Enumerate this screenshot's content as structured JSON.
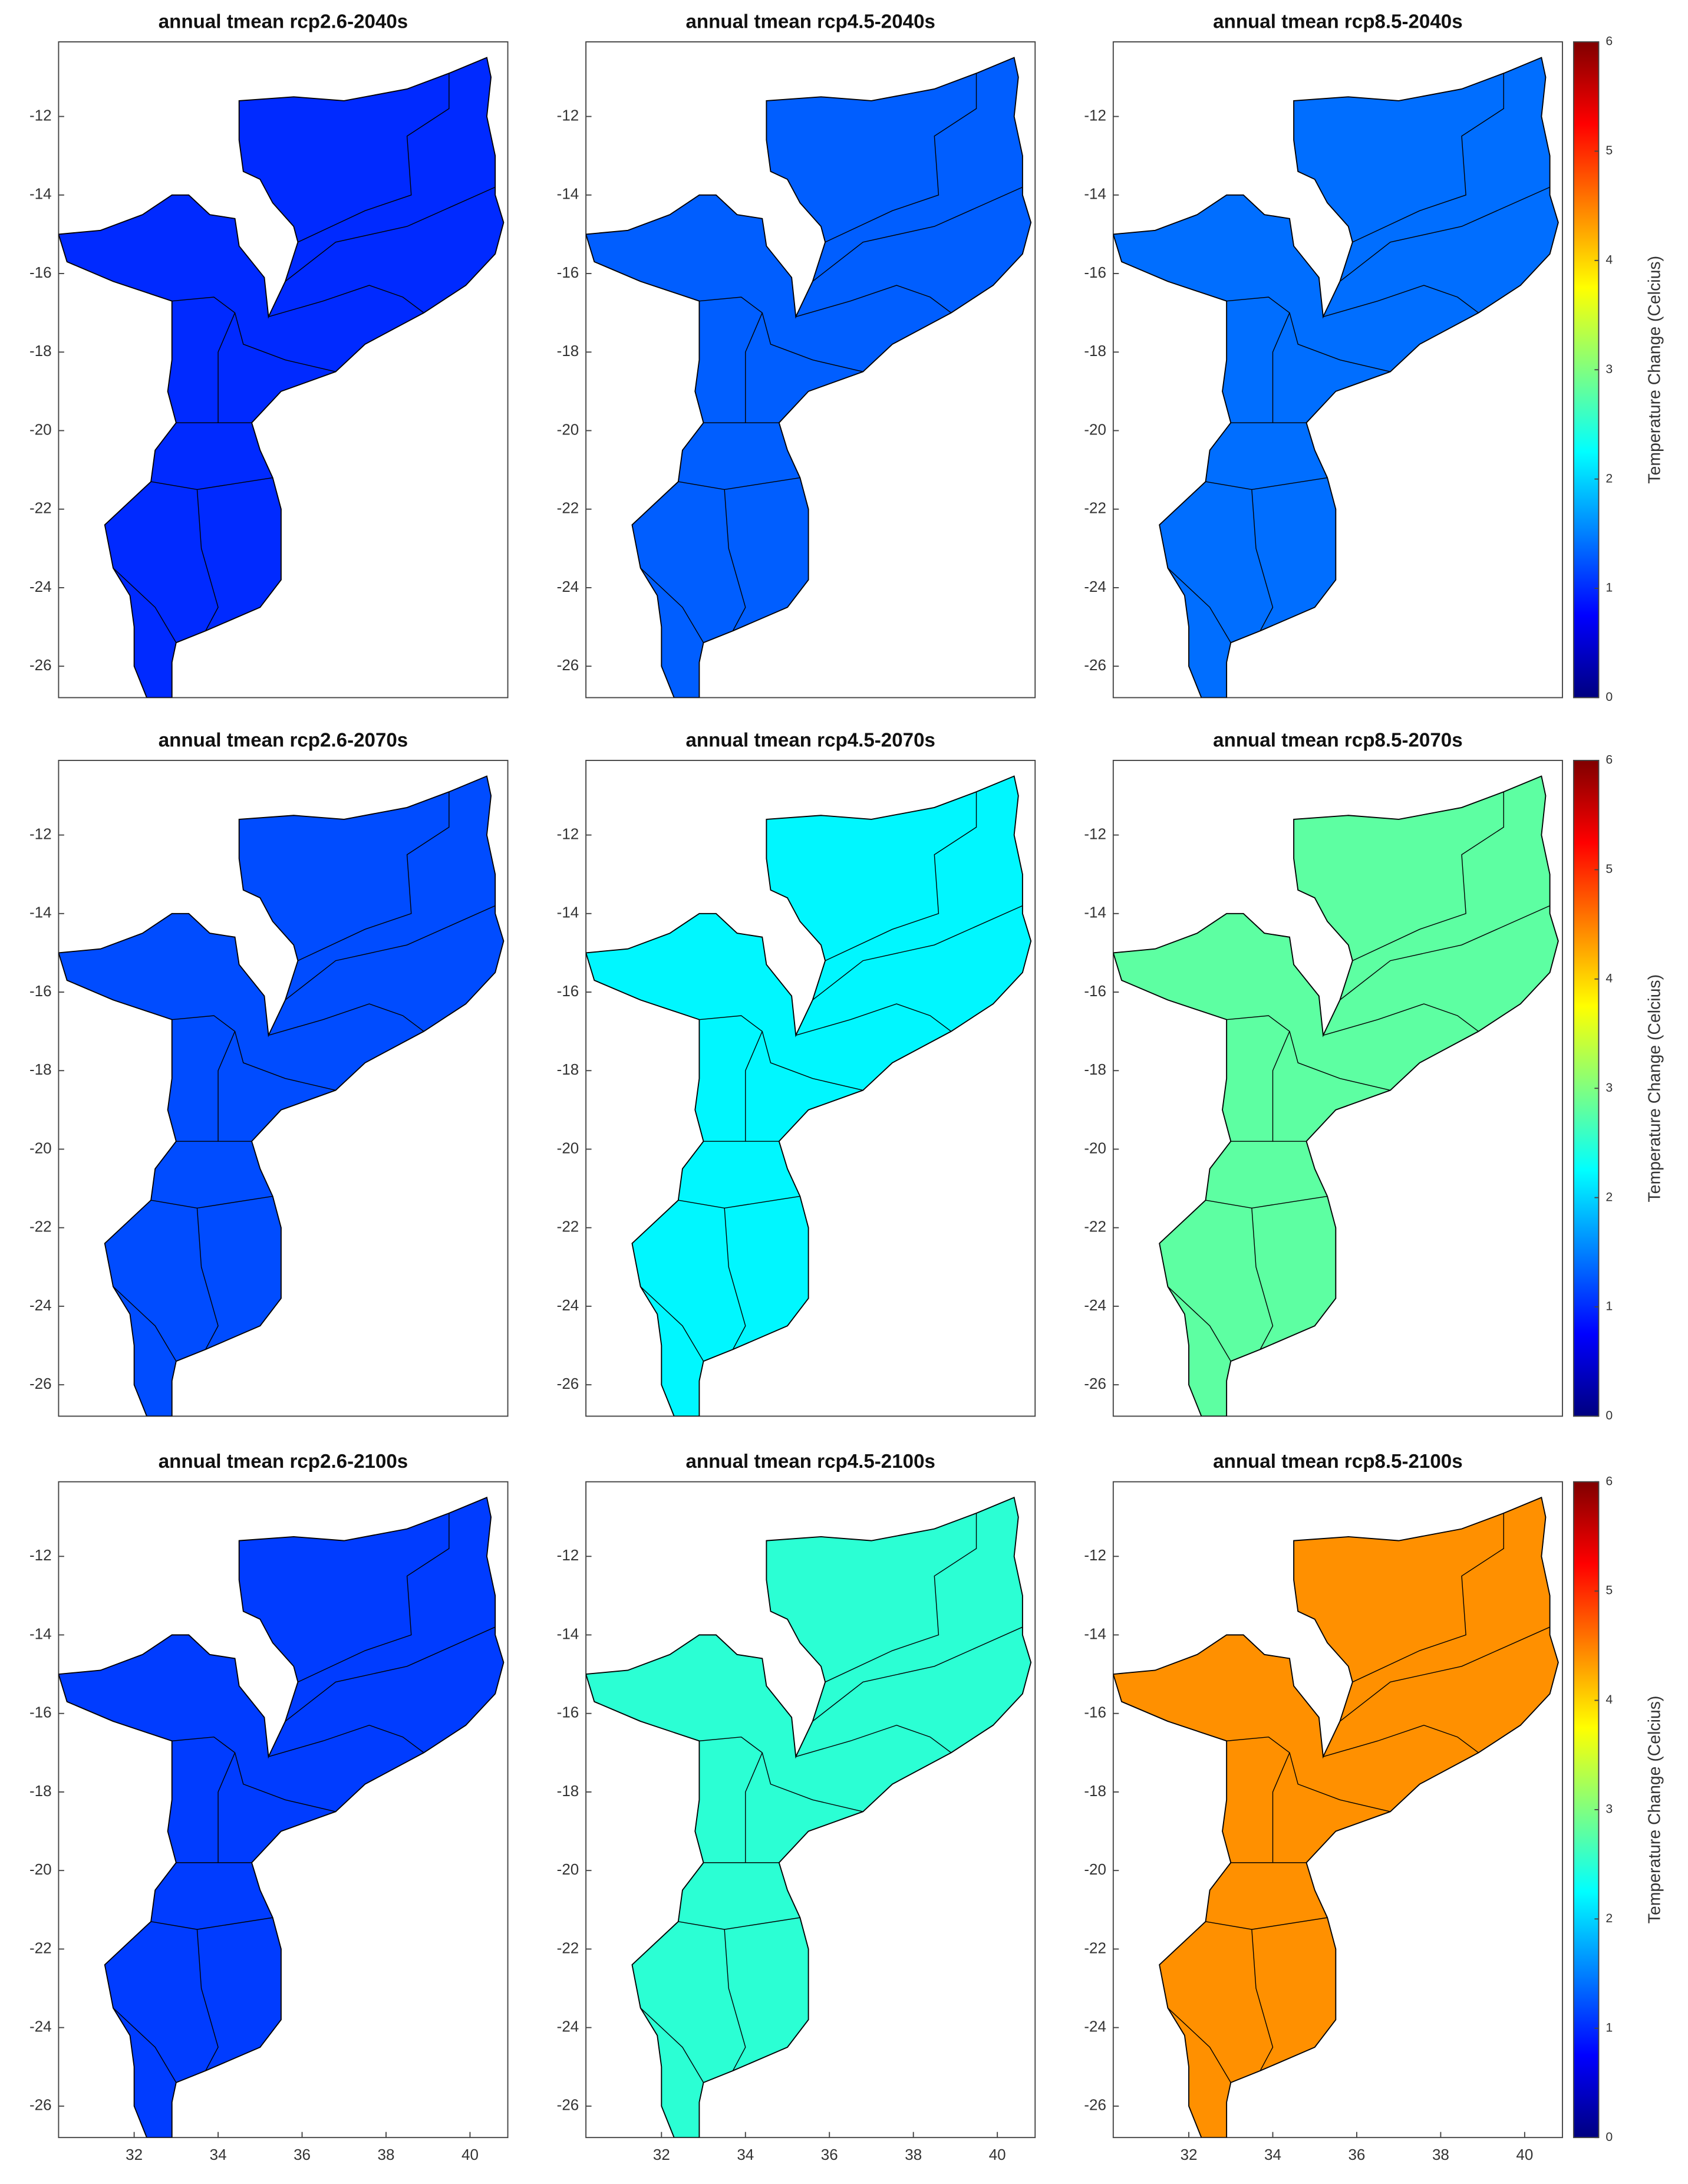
{
  "chart_data": [
    {
      "type": "map",
      "title": "annual tmean rcp2.6-2040s",
      "value": 1.0,
      "xlim": [
        30.2,
        40.9
      ],
      "ylim": [
        -26.8,
        -10.1
      ],
      "yticks": [
        -12,
        -14,
        -16,
        -18,
        -20,
        -22,
        -24,
        -26
      ]
    },
    {
      "type": "map",
      "title": "annual tmean rcp4.5-2040s",
      "value": 1.3,
      "xlim": [
        30.2,
        40.9
      ],
      "ylim": [
        -26.8,
        -10.1
      ],
      "yticks": [
        -12,
        -14,
        -16,
        -18,
        -20,
        -22,
        -24,
        -26
      ]
    },
    {
      "type": "map",
      "title": "annual tmean rcp8.5-2040s",
      "value": 1.4,
      "xlim": [
        30.2,
        40.9
      ],
      "ylim": [
        -26.8,
        -10.1
      ],
      "yticks": [
        -12,
        -14,
        -16,
        -18,
        -20,
        -22,
        -24,
        -26
      ],
      "colorbar": {
        "label": "Temperature Change (Celcius)",
        "lim": [
          0,
          6
        ],
        "ticks": [
          0,
          1,
          2,
          3,
          4,
          5,
          6
        ],
        "colormap": "jet"
      }
    },
    {
      "type": "map",
      "title": "annual tmean rcp2.6-2070s",
      "value": 1.2,
      "xlim": [
        30.2,
        40.9
      ],
      "ylim": [
        -26.8,
        -10.1
      ],
      "yticks": [
        -12,
        -14,
        -16,
        -18,
        -20,
        -22,
        -24,
        -26
      ]
    },
    {
      "type": "map",
      "title": "annual tmean rcp4.5-2070s",
      "value": 2.2,
      "xlim": [
        30.2,
        40.9
      ],
      "ylim": [
        -26.8,
        -10.1
      ],
      "yticks": [
        -12,
        -14,
        -16,
        -18,
        -20,
        -22,
        -24,
        -26
      ]
    },
    {
      "type": "map",
      "title": "annual tmean rcp8.5-2070s",
      "value": 2.8,
      "xlim": [
        30.2,
        40.9
      ],
      "ylim": [
        -26.8,
        -10.1
      ],
      "yticks": [
        -12,
        -14,
        -16,
        -18,
        -20,
        -22,
        -24,
        -26
      ],
      "colorbar": {
        "label": "Temperature Change (Celcius)",
        "lim": [
          0,
          6
        ],
        "ticks": [
          0,
          1,
          2,
          3,
          4,
          5,
          6
        ],
        "colormap": "jet"
      }
    },
    {
      "type": "map",
      "title": "annual tmean rcp2.6-2100s",
      "value": 1.1,
      "xlim": [
        30.2,
        40.9
      ],
      "ylim": [
        -26.8,
        -10.1
      ],
      "yticks": [
        -12,
        -14,
        -16,
        -18,
        -20,
        -22,
        -24,
        -26
      ],
      "xticks": [
        32,
        34,
        36,
        38,
        40
      ]
    },
    {
      "type": "map",
      "title": "annual tmean rcp4.5-2100s",
      "value": 2.5,
      "xlim": [
        30.2,
        40.9
      ],
      "ylim": [
        -26.8,
        -10.1
      ],
      "yticks": [
        -12,
        -14,
        -16,
        -18,
        -20,
        -22,
        -24,
        -26
      ],
      "xticks": [
        32,
        34,
        36,
        38,
        40
      ]
    },
    {
      "type": "map",
      "title": "annual tmean rcp8.5-2100s",
      "value": 4.4,
      "xlim": [
        30.2,
        40.9
      ],
      "ylim": [
        -26.8,
        -10.1
      ],
      "yticks": [
        -12,
        -14,
        -16,
        -18,
        -20,
        -22,
        -24,
        -26
      ],
      "xticks": [
        32,
        34,
        36,
        38,
        40
      ],
      "colorbar": {
        "label": "Temperature Change (Celcius)",
        "lim": [
          0,
          6
        ],
        "ticks": [
          0,
          1,
          2,
          3,
          4,
          5,
          6
        ],
        "colormap": "jet"
      }
    }
  ]
}
